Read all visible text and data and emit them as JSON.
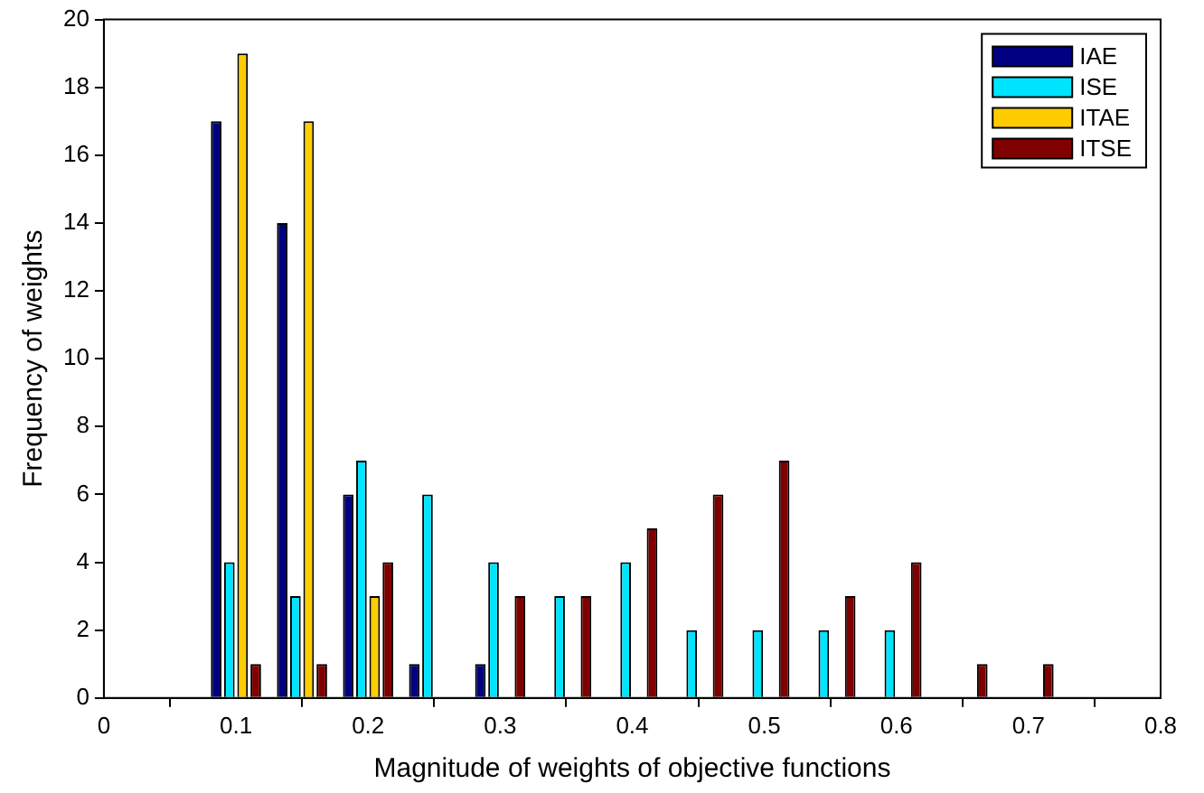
{
  "chart_data": {
    "type": "bar",
    "xlabel": "Magnitude of weights of objective functions",
    "ylabel": "Frequency of weights",
    "x": [
      0.1,
      0.15,
      0.2,
      0.25,
      0.3,
      0.35,
      0.4,
      0.45,
      0.5,
      0.55,
      0.6,
      0.65,
      0.7
    ],
    "series": [
      {
        "name": "IAE",
        "color": "#000080",
        "values": [
          17,
          14,
          6,
          1,
          1,
          0,
          0,
          0,
          0,
          0,
          0,
          0,
          0
        ]
      },
      {
        "name": "ISE",
        "color": "#00e5ff",
        "values": [
          4,
          3,
          7,
          6,
          4,
          3,
          4,
          2,
          2,
          2,
          2,
          0,
          0
        ]
      },
      {
        "name": "ITAE",
        "color": "#ffcc00",
        "values": [
          19,
          17,
          3,
          0,
          0,
          0,
          0,
          0,
          0,
          0,
          0,
          0,
          0
        ]
      },
      {
        "name": "ITSE",
        "color": "#800000",
        "values": [
          1,
          1,
          4,
          0,
          3,
          3,
          5,
          6,
          7,
          3,
          4,
          1,
          1
        ]
      }
    ],
    "xlim": [
      0,
      0.8
    ],
    "xticks": [
      0,
      0.1,
      0.2,
      0.3,
      0.4,
      0.5,
      0.6,
      0.7,
      0.8
    ],
    "ylim": [
      0,
      20
    ],
    "yticks": [
      0,
      2,
      4,
      6,
      8,
      10,
      12,
      14,
      16,
      18,
      20
    ],
    "grid": false,
    "legend": "top right"
  }
}
